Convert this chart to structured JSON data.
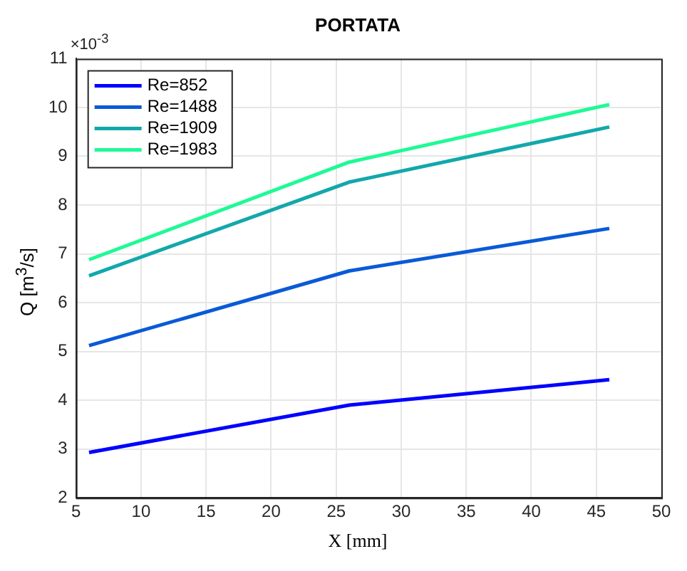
{
  "chart_data": {
    "type": "line",
    "title": "PORTATA",
    "xlabel": "X [mm]",
    "ylabel": "Q [m$^{3}$/s]",
    "annotations": [
      "×10$^{-3}$"
    ],
    "x": [
      6,
      26,
      46
    ],
    "series": [
      {
        "name": "Re=852",
        "color": "#0000ff",
        "values": [
          2.93,
          3.9,
          4.42
        ]
      },
      {
        "name": "Re=1488",
        "color": "#0a5ad7",
        "values": [
          5.12,
          6.65,
          7.52
        ]
      },
      {
        "name": "Re=1909",
        "color": "#12a8ab",
        "values": [
          6.55,
          8.47,
          9.6
        ]
      },
      {
        "name": "Re=1983",
        "color": "#1efa96",
        "values": [
          6.88,
          8.88,
          10.06
        ]
      }
    ],
    "xlim": [
      5,
      50
    ],
    "xticks": [
      5,
      10,
      15,
      20,
      25,
      30,
      35,
      40,
      45,
      50
    ],
    "ylim": [
      2,
      11
    ],
    "yticks": [
      2,
      3,
      4,
      5,
      6,
      7,
      8,
      9,
      10,
      11
    ],
    "grid": true,
    "legend": "top left",
    "marker": "none",
    "line_style": "solid"
  }
}
